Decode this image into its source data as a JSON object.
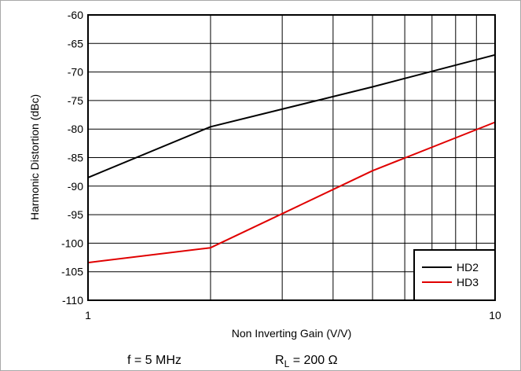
{
  "chart_data": {
    "type": "line",
    "xlabel": "Non Inverting Gain (V/V)",
    "ylabel": "Harmonic Distortion (dBc)",
    "x_scale": "log",
    "xlim": [
      1,
      10
    ],
    "ylim": [
      -110,
      -60
    ],
    "x_ticks": [
      1,
      10
    ],
    "x_tick_labels": [
      "1",
      "10"
    ],
    "y_ticks": [
      -110,
      -105,
      -100,
      -95,
      -90,
      -85,
      -80,
      -75,
      -70,
      -65,
      -60
    ],
    "y_tick_labels": [
      "-110",
      "-105",
      "-100",
      "-95",
      "-90",
      "-85",
      "-80",
      "-75",
      "-70",
      "-65",
      "-60"
    ],
    "grid": true,
    "legend_position": "bottom-right",
    "series": [
      {
        "name": "HD2",
        "color": "#000000",
        "x": [
          1,
          2,
          5,
          10
        ],
        "y": [
          -88.5,
          -79.6,
          -72.6,
          -67.0
        ]
      },
      {
        "name": "HD3",
        "color": "#e00000",
        "x": [
          1,
          2,
          5,
          10
        ],
        "y": [
          -103.4,
          -100.8,
          -87.3,
          -78.8
        ]
      }
    ]
  },
  "conditions": {
    "freq": "f = 5 MHz",
    "load_prefix": "R",
    "load_sub": "L",
    "load_suffix": " = 200 Ω"
  }
}
